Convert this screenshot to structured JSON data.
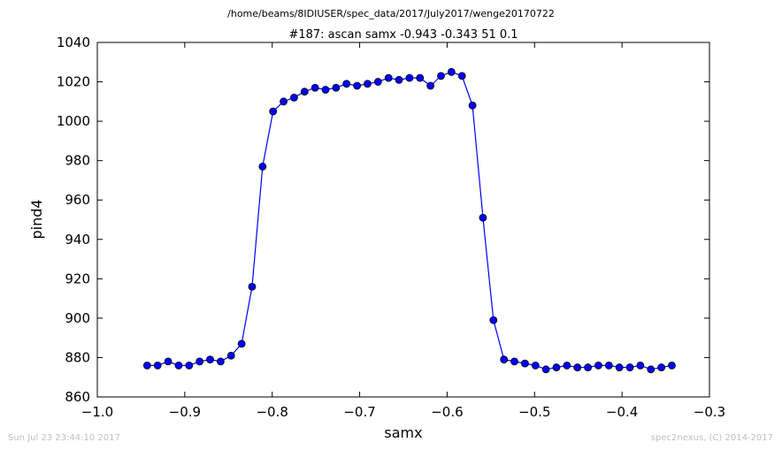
{
  "header": {
    "path": "/home/beams/8IDIUSER/spec_data/2017/July2017/wenge20170722"
  },
  "footer": {
    "timestamp": "Sun Jul 23 23:44:10 2017",
    "credit": "spec2nexus, (C) 2014-2017"
  },
  "colors": {
    "series": "#0000ff",
    "marker_edge": "#000000",
    "footer_text": "#bfbfbf"
  },
  "chart_data": {
    "type": "line",
    "title": "#187: ascan  samx -0.943 -0.343  51 0.1",
    "xlabel": "samx",
    "ylabel": "pind4",
    "xlim": [
      -1.0,
      -0.3
    ],
    "ylim": [
      860,
      1040
    ],
    "xticks": [
      -1.0,
      -0.9,
      -0.8,
      -0.7,
      -0.6,
      -0.5,
      -0.4,
      -0.3
    ],
    "xtick_labels": [
      "−1.0",
      "−0.9",
      "−0.8",
      "−0.7",
      "−0.6",
      "−0.5",
      "−0.4",
      "−0.3"
    ],
    "yticks": [
      860,
      880,
      900,
      920,
      940,
      960,
      980,
      1000,
      1020,
      1040
    ],
    "ytick_labels": [
      "860",
      "880",
      "900",
      "920",
      "940",
      "960",
      "980",
      "1000",
      "1020",
      "1040"
    ],
    "grid": false,
    "markers": "circle",
    "x": [
      -0.943,
      -0.931,
      -0.919,
      -0.907,
      -0.895,
      -0.883,
      -0.871,
      -0.859,
      -0.847,
      -0.835,
      -0.823,
      -0.811,
      -0.799,
      -0.787,
      -0.775,
      -0.763,
      -0.751,
      -0.739,
      -0.727,
      -0.715,
      -0.703,
      -0.691,
      -0.679,
      -0.667,
      -0.655,
      -0.643,
      -0.631,
      -0.619,
      -0.607,
      -0.595,
      -0.583,
      -0.571,
      -0.559,
      -0.547,
      -0.535,
      -0.523,
      -0.511,
      -0.499,
      -0.487,
      -0.475,
      -0.463,
      -0.451,
      -0.439,
      -0.427,
      -0.415,
      -0.403,
      -0.391,
      -0.379,
      -0.367,
      -0.355,
      -0.343
    ],
    "y": [
      876,
      876,
      878,
      876,
      876,
      878,
      879,
      878,
      881,
      887,
      916,
      977,
      1005,
      1010,
      1012,
      1015,
      1017,
      1016,
      1017,
      1019,
      1018,
      1019,
      1020,
      1022,
      1021,
      1022,
      1022,
      1018,
      1023,
      1025,
      1023,
      1008,
      951,
      899,
      879,
      878,
      877,
      876,
      874,
      875,
      876,
      875,
      875,
      876,
      876,
      875,
      875,
      876,
      874,
      875,
      876
    ]
  }
}
